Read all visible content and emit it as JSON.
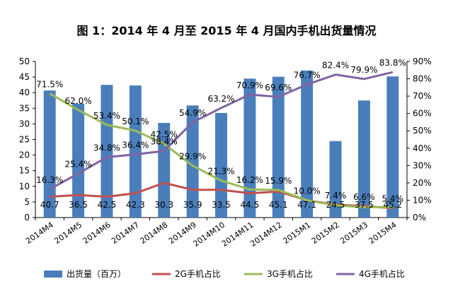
{
  "chart_data": {
    "type": "bar",
    "title": "图 1：2014 年 4 月至 2015 年 4 月国内手机出货量情况",
    "categories": [
      "2014M4",
      "2014M5",
      "2014M6",
      "2014M7",
      "2014M8",
      "2014M9",
      "2014M10",
      "2014M11",
      "2014M12",
      "2015M1",
      "2015M2",
      "2015M3",
      "2015M4"
    ],
    "series": [
      {
        "name": "出货量（百万）",
        "type": "bar",
        "axis": "left",
        "color": "#4a7ebb",
        "values": [
          40.7,
          36.5,
          42.5,
          42.3,
          30.3,
          35.9,
          33.5,
          44.5,
          45.1,
          47.1,
          24.5,
          37.5,
          45.2
        ],
        "labels": [
          "40.7",
          "36.5",
          "42.5",
          "42.3",
          "30.3",
          "35.9",
          "33.5",
          "44.5",
          "45.1",
          "47.1",
          "24.5",
          "37.5",
          "45.2"
        ]
      },
      {
        "name": "2G手机占比",
        "type": "line",
        "axis": "right",
        "color": "#c0504d",
        "values": [
          12.0,
          13.0,
          12.0,
          14.0,
          20.0,
          16.0,
          16.0,
          14.0,
          15.0,
          10.0,
          7.4,
          6.6,
          5.4
        ],
        "labels": [
          "",
          "",
          "",
          "",
          "",
          "",
          "",
          "",
          "",
          "10.0%",
          "7.4%",
          "6.6%",
          "5.4%"
        ]
      },
      {
        "name": "3G手机占比",
        "type": "line",
        "axis": "right",
        "color": "#9bbb59",
        "values": [
          71.5,
          62.0,
          53.4,
          50.1,
          42.5,
          29.9,
          21.3,
          16.2,
          15.9,
          10.0,
          7.0,
          6.0,
          6.0
        ],
        "labels": [
          "71.5%",
          "62.0%",
          "53.4%",
          "50.1%",
          "42.5%",
          "29.9%",
          "21.3%",
          "16.2%",
          "15.9%",
          "",
          "",
          "",
          ""
        ]
      },
      {
        "name": "4G手机占比",
        "type": "line",
        "axis": "right",
        "color": "#8064a2",
        "values": [
          16.3,
          25.4,
          34.8,
          36.4,
          38.4,
          54.9,
          63.2,
          70.9,
          69.6,
          76.7,
          82.4,
          79.9,
          83.8
        ],
        "labels": [
          "16.3%",
          "25.4%",
          "34.8%",
          "36.4%",
          "38.4%",
          "54.9%",
          "63.2%",
          "70.9%",
          "69.6%",
          "76.7%",
          "82.4%",
          "79.9%",
          "83.8%"
        ]
      }
    ],
    "left_axis": {
      "min": 0,
      "max": 50,
      "step": 5,
      "ticks": [
        "0",
        "5",
        "10",
        "15",
        "20",
        "25",
        "30",
        "35",
        "40",
        "45",
        "50"
      ]
    },
    "right_axis": {
      "min": 0,
      "max": 90,
      "step": 10,
      "ticks": [
        "0%",
        "10%",
        "20%",
        "30%",
        "40%",
        "50%",
        "60%",
        "70%",
        "80%",
        "90%"
      ]
    },
    "grid": false,
    "legend_position": "bottom"
  }
}
